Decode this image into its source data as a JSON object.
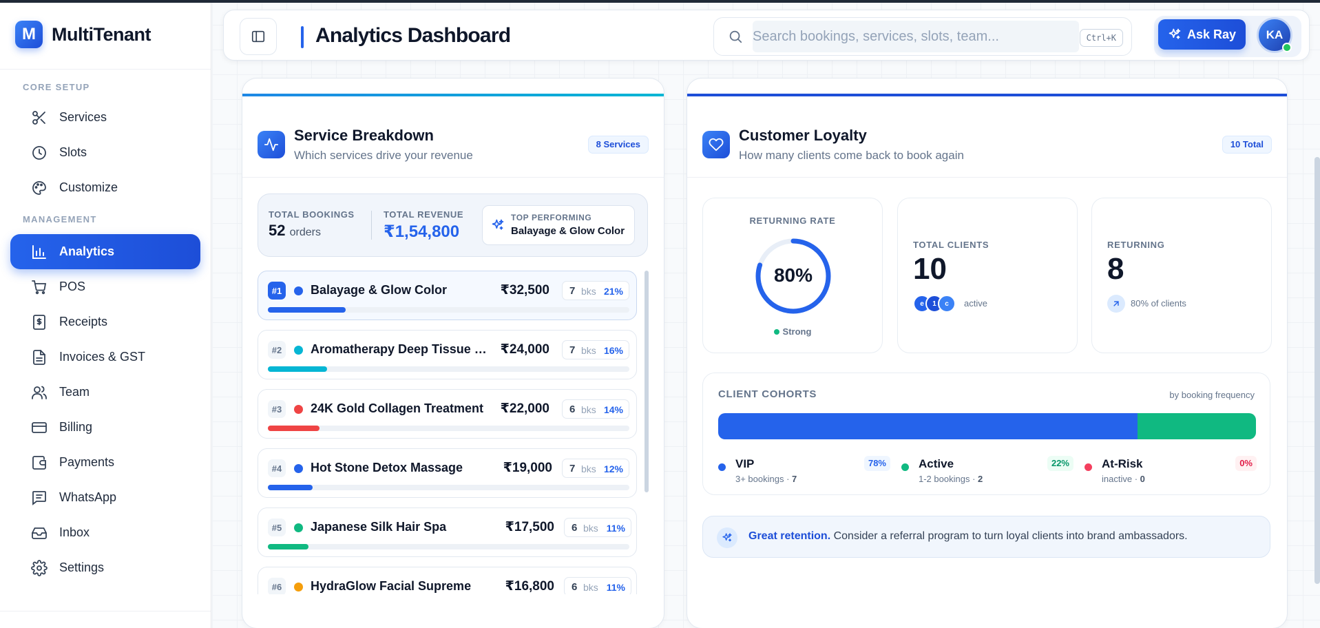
{
  "brand": {
    "logo_letter": "M",
    "name": "MultiTenant"
  },
  "sidebar": {
    "core_label": "CORE SETUP",
    "core_items": [
      {
        "label": "Services",
        "icon": "scissors-icon"
      },
      {
        "label": "Slots",
        "icon": "clock-icon"
      },
      {
        "label": "Customize",
        "icon": "palette-icon"
      }
    ],
    "management_label": "MANAGEMENT",
    "management_items": [
      {
        "label": "Analytics",
        "icon": "bar-chart-icon",
        "active": true
      },
      {
        "label": "POS",
        "icon": "cart-icon"
      },
      {
        "label": "Receipts",
        "icon": "receipt-icon"
      },
      {
        "label": "Invoices & GST",
        "icon": "document-icon"
      },
      {
        "label": "Team",
        "icon": "users-icon"
      },
      {
        "label": "Billing",
        "icon": "credit-card-icon"
      },
      {
        "label": "Payments",
        "icon": "wallet-icon"
      },
      {
        "label": "WhatsApp",
        "icon": "message-icon"
      },
      {
        "label": "Inbox",
        "icon": "inbox-icon"
      },
      {
        "label": "Settings",
        "icon": "gear-icon"
      }
    ]
  },
  "header": {
    "title": "Analytics Dashboard",
    "search_placeholder": "Search bookings, services, slots, team...",
    "shortcut": "Ctrl+K",
    "ask_label": "Ask Ray",
    "avatar_initials": "KA"
  },
  "service_breakdown": {
    "title": "Service Breakdown",
    "subtitle": "Which services drive your revenue",
    "badge": "8 Services",
    "accent_color": "#1e88e5",
    "total_bookings_label": "TOTAL BOOKINGS",
    "total_bookings_value": "52",
    "total_bookings_unit": "orders",
    "total_revenue_label": "TOTAL REVENUE",
    "total_revenue_value": "₹1,54,800",
    "top_performing_label": "TOP PERFORMING",
    "top_performing_value": "Balayage & Glow Color",
    "bookings_unit": "bks",
    "services": [
      {
        "rank": "#1",
        "name": "Balayage & Glow Color",
        "price": "₹32,500",
        "bookings": "7",
        "pct": "21%",
        "share": 0.21,
        "color": "#2563eb"
      },
      {
        "rank": "#2",
        "name": "Aromatherapy Deep Tissue Therapy",
        "price": "₹24,000",
        "bookings": "7",
        "pct": "16%",
        "share": 0.16,
        "color": "#06b6d4"
      },
      {
        "rank": "#3",
        "name": "24K Gold Collagen Treatment",
        "price": "₹22,000",
        "bookings": "6",
        "pct": "14%",
        "share": 0.14,
        "color": "#ef4444"
      },
      {
        "rank": "#4",
        "name": "Hot Stone Detox Massage",
        "price": "₹19,000",
        "bookings": "7",
        "pct": "12%",
        "share": 0.12,
        "color": "#2563eb"
      },
      {
        "rank": "#5",
        "name": "Japanese Silk Hair Spa",
        "price": "₹17,500",
        "bookings": "6",
        "pct": "11%",
        "share": 0.11,
        "color": "#10b981"
      },
      {
        "rank": "#6",
        "name": "HydraGlow Facial Supreme",
        "price": "₹16,800",
        "bookings": "6",
        "pct": "11%",
        "share": 0.11,
        "color": "#f59e0b"
      }
    ]
  },
  "loyalty": {
    "title": "Customer Loyalty",
    "subtitle": "How many clients come back to book again",
    "badge": "10 Total",
    "accent_color": "#1d4ed8",
    "returning_rate_label": "RETURNING RATE",
    "returning_rate_value": "80%",
    "returning_rate_fraction": 0.8,
    "strength_label": "Strong",
    "total_clients_label": "TOTAL CLIENTS",
    "total_clients_value": "10",
    "active_avatars": [
      "e",
      "1",
      "c"
    ],
    "active_label": "active",
    "returning_label": "RETURNING",
    "returning_value": "8",
    "returning_note": "80% of clients",
    "cohorts_title": "CLIENT COHORTS",
    "cohorts_note": "by booking frequency",
    "cohorts": [
      {
        "name": "VIP",
        "pct": "78%",
        "share": 0.78,
        "desc": "3+ bookings",
        "count": "7",
        "color": "#2563eb",
        "pct_bg": "#eff6ff",
        "pct_fg": "#2563eb"
      },
      {
        "name": "Active",
        "pct": "22%",
        "share": 0.22,
        "desc": "1-2 bookings",
        "count": "2",
        "color": "#10b981",
        "pct_bg": "#ecfdf5",
        "pct_fg": "#059669"
      },
      {
        "name": "At-Risk",
        "pct": "0%",
        "share": 0,
        "desc": "inactive",
        "count": "0",
        "color": "#f43f5e",
        "pct_bg": "#fff1f2",
        "pct_fg": "#e11d48"
      }
    ],
    "insight_strong": "Great retention.",
    "insight_text": "Consider a referral program to turn loyal clients into brand ambassadors."
  }
}
